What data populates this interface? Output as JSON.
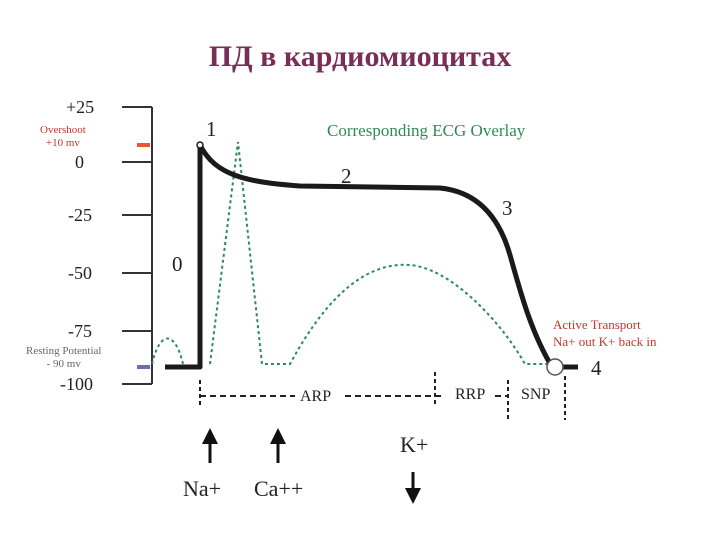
{
  "title": "ПД в кардиомиоцитах",
  "y_ticks": [
    "+25",
    "0",
    "-25",
    "-50",
    "-75",
    "-100"
  ],
  "overshoot": {
    "line1": "Overshoot",
    "line2": "+10 mv"
  },
  "resting": {
    "line1": "Resting Potential",
    "line2": "- 90 mv"
  },
  "phases": {
    "p0": "0",
    "p1": "1",
    "p2": "2",
    "p3": "3",
    "p4": "4"
  },
  "ecg_overlay_label": "Corresponding ECG Overlay",
  "periods": {
    "arp": "ARP",
    "rrp": "RRP",
    "snp": "SNP"
  },
  "active_transport": {
    "line1": "Active Transport",
    "line2": "Na+ out  K+ back in"
  },
  "ions": {
    "na": "Na+",
    "ca": "Ca++",
    "k": "K+"
  },
  "colors": {
    "title": "#7a2e56",
    "ecg": "#2e8b57",
    "marker_red": "#e05a2b",
    "marker_blue": "#6a6fb5",
    "action_potential": "#1a1a1a"
  }
}
